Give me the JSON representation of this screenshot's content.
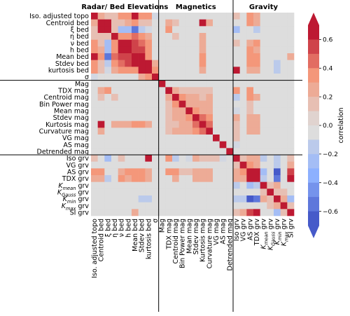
{
  "chart_data": {
    "type": "heatmap",
    "title": "",
    "group_titles": [
      "Radar/ Bed Elevations",
      "Magnetics",
      "Gravity"
    ],
    "labels": [
      "Iso. adjusted topo",
      "Centroid bed",
      "ξ bed",
      "η bed",
      "ν bed",
      "h bed",
      "Mean bed",
      "Stdev bed",
      "kurtosis bed",
      "σ",
      "Mag",
      "TDX mag",
      "Centroid mag",
      "Bin Power mag",
      "Mean mag",
      "Stdev mag",
      "Kurtosis mag",
      "Curvature mag",
      "VG mag",
      "AS mag",
      "Detrended mag",
      "Iso grv",
      "VG grv",
      "AS grv",
      "TDX grv",
      "K_mean grv",
      "K_Gauss grv",
      "K_min grv",
      "K_max grv",
      "SI grv"
    ],
    "group_sizes": [
      10,
      11,
      9
    ],
    "colorbar": {
      "label": "correlation",
      "range": [
        -0.7,
        0.7
      ],
      "ticks": [
        "0.6",
        "0.4",
        "0.2",
        "0.0",
        "−0.2",
        "−0.4",
        "−0.6"
      ],
      "tick_values": [
        0.6,
        0.4,
        0.2,
        0.0,
        -0.2,
        -0.4,
        -0.6
      ],
      "levels": 14,
      "colormap": "coolwarm"
    },
    "values_symmetric": true,
    "diagonal": 1.0,
    "cells": [
      [
        0,
        1,
        0.25
      ],
      [
        0,
        2,
        0.1
      ],
      [
        0,
        3,
        0.1
      ],
      [
        0,
        4,
        0.3
      ],
      [
        0,
        5,
        0.3
      ],
      [
        0,
        6,
        0.7
      ],
      [
        0,
        7,
        0.3
      ],
      [
        0,
        8,
        0.3
      ],
      [
        0,
        9,
        -0.1
      ],
      [
        1,
        2,
        0.6
      ],
      [
        1,
        3,
        0.1
      ],
      [
        1,
        4,
        0.15
      ],
      [
        1,
        5,
        0.2
      ],
      [
        1,
        6,
        0.3
      ],
      [
        1,
        7,
        0.15
      ],
      [
        1,
        8,
        0.1
      ],
      [
        2,
        3,
        0.15
      ],
      [
        2,
        4,
        -0.25
      ],
      [
        2,
        5,
        -0.3
      ],
      [
        2,
        6,
        -0.55
      ],
      [
        2,
        7,
        -0.2
      ],
      [
        2,
        8,
        -0.1
      ],
      [
        3,
        4,
        0.3
      ],
      [
        3,
        5,
        0.35
      ],
      [
        3,
        6,
        0.45
      ],
      [
        3,
        7,
        0.35
      ],
      [
        3,
        8,
        0.25
      ],
      [
        4,
        5,
        0.6
      ],
      [
        4,
        6,
        0.5
      ],
      [
        4,
        7,
        0.45
      ],
      [
        4,
        8,
        0.3
      ],
      [
        5,
        6,
        0.55
      ],
      [
        5,
        7,
        0.5
      ],
      [
        5,
        8,
        0.3
      ],
      [
        6,
        7,
        0.6
      ],
      [
        6,
        8,
        0.35
      ],
      [
        7,
        8,
        0.6
      ],
      [
        7,
        9,
        0.25
      ],
      [
        8,
        9,
        0.3
      ],
      [
        11,
        12,
        0.25
      ],
      [
        11,
        13,
        0.15
      ],
      [
        11,
        14,
        0.1
      ],
      [
        11,
        15,
        0.1
      ],
      [
        11,
        16,
        0.15
      ],
      [
        11,
        17,
        0.1
      ],
      [
        12,
        13,
        0.3
      ],
      [
        12,
        14,
        0.2
      ],
      [
        12,
        15,
        0.2
      ],
      [
        12,
        16,
        0.15
      ],
      [
        12,
        17,
        0.2
      ],
      [
        13,
        14,
        0.25
      ],
      [
        13,
        15,
        0.2
      ],
      [
        13,
        16,
        0.2
      ],
      [
        13,
        17,
        0.2
      ],
      [
        14,
        15,
        0.3
      ],
      [
        14,
        16,
        0.25
      ],
      [
        14,
        17,
        0.2
      ],
      [
        15,
        16,
        0.4
      ],
      [
        15,
        17,
        0.35
      ],
      [
        16,
        17,
        0.45
      ],
      [
        21,
        22,
        0.15
      ],
      [
        21,
        23,
        0.2
      ],
      [
        21,
        24,
        0.2
      ],
      [
        21,
        25,
        -0.15
      ],
      [
        21,
        27,
        -0.2
      ],
      [
        21,
        29,
        0.15
      ],
      [
        22,
        23,
        0.3
      ],
      [
        22,
        24,
        0.25
      ],
      [
        22,
        27,
        -0.2
      ],
      [
        22,
        29,
        0.2
      ],
      [
        23,
        24,
        0.7
      ],
      [
        23,
        25,
        -0.25
      ],
      [
        23,
        27,
        -0.6
      ],
      [
        23,
        29,
        0.5
      ],
      [
        24,
        25,
        -0.2
      ],
      [
        24,
        27,
        -0.55
      ],
      [
        24,
        29,
        0.6
      ],
      [
        25,
        26,
        0.1
      ],
      [
        25,
        27,
        0.25
      ],
      [
        26,
        27,
        0.15
      ],
      [
        26,
        28,
        0.15
      ],
      [
        27,
        28,
        0.2
      ],
      [
        27,
        29,
        -0.3
      ],
      [
        28,
        29,
        0.1
      ],
      [
        0,
        23,
        0.3
      ],
      [
        0,
        24,
        0.2
      ],
      [
        0,
        21,
        0.15
      ],
      [
        1,
        11,
        0.2
      ],
      [
        1,
        12,
        0.15
      ],
      [
        1,
        16,
        0.6
      ],
      [
        1,
        17,
        0.2
      ],
      [
        1,
        23,
        0.3
      ],
      [
        1,
        24,
        0.25
      ],
      [
        2,
        11,
        0.35
      ],
      [
        2,
        21,
        -0.3
      ],
      [
        2,
        24,
        -0.2
      ],
      [
        3,
        12,
        0.1
      ],
      [
        3,
        16,
        0.2
      ],
      [
        4,
        16,
        0.25
      ],
      [
        4,
        21,
        0.15
      ],
      [
        4,
        23,
        0.25
      ],
      [
        4,
        24,
        0.3
      ],
      [
        5,
        16,
        0.2
      ],
      [
        5,
        23,
        0.3
      ],
      [
        5,
        24,
        0.25
      ],
      [
        6,
        16,
        0.3
      ],
      [
        6,
        23,
        0.35
      ],
      [
        6,
        24,
        0.3
      ],
      [
        6,
        29,
        0.25
      ],
      [
        7,
        16,
        0.3
      ],
      [
        7,
        23,
        0.35
      ],
      [
        7,
        24,
        0.35
      ],
      [
        7,
        27,
        -0.2
      ],
      [
        8,
        16,
        0.2
      ],
      [
        8,
        21,
        0.65
      ],
      [
        8,
        23,
        0.2
      ],
      [
        8,
        24,
        0.2
      ],
      [
        8,
        27,
        -0.2
      ],
      [
        11,
        21,
        0.3
      ],
      [
        11,
        23,
        0.3
      ],
      [
        12,
        21,
        -0.2
      ],
      [
        12,
        23,
        0.3
      ],
      [
        12,
        24,
        0.2
      ],
      [
        13,
        23,
        0.15
      ],
      [
        14,
        21,
        -0.1
      ],
      [
        14,
        23,
        0.15
      ],
      [
        15,
        21,
        0.2
      ],
      [
        15,
        23,
        0.25
      ],
      [
        15,
        24,
        0.2
      ],
      [
        16,
        21,
        0.1
      ],
      [
        16,
        23,
        0.2
      ],
      [
        16,
        24,
        0.25
      ],
      [
        17,
        21,
        0.15
      ],
      [
        17,
        23,
        0.25
      ],
      [
        17,
        24,
        0.2
      ],
      [
        18,
        21,
        0.1
      ],
      [
        19,
        21,
        -0.1
      ]
    ]
  }
}
